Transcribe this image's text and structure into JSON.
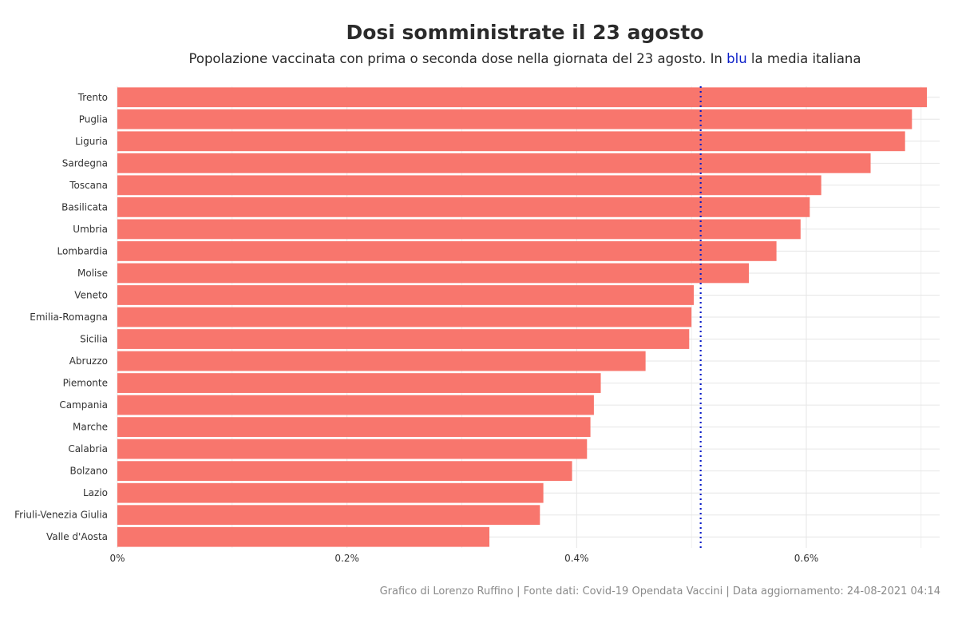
{
  "title": "Dosi somministrate il 23 agosto",
  "subtitle": {
    "before": "Popolazione vaccinata con prima o seconda dose nella giornata del 23 agosto. In ",
    "highlight": "blu",
    "after": " la media italiana"
  },
  "caption": "Grafico di Lorenzo Ruffino | Fonte dati: Covid-19 Opendata Vaccini | Data aggiornamento: 24-08-2021 04:14",
  "colors": {
    "bar": "#f8766d",
    "mean_line": "#0a1ec8",
    "grid": "#e6e6e6"
  },
  "chart_data": {
    "type": "bar",
    "orientation": "horizontal",
    "categories": [
      "Trento",
      "Puglia",
      "Liguria",
      "Sardegna",
      "Toscana",
      "Basilicata",
      "Umbria",
      "Lombardia",
      "Molise",
      "Veneto",
      "Emilia-Romagna",
      "Sicilia",
      "Abruzzo",
      "Piemonte",
      "Campania",
      "Marche",
      "Calabria",
      "Bolzano",
      "Lazio",
      "Friuli-Venezia Giulia",
      "Valle d'Aosta"
    ],
    "values": [
      0.705,
      0.692,
      0.686,
      0.656,
      0.613,
      0.603,
      0.595,
      0.574,
      0.55,
      0.502,
      0.5,
      0.498,
      0.46,
      0.421,
      0.415,
      0.412,
      0.409,
      0.396,
      0.371,
      0.368,
      0.324
    ],
    "unit": "%",
    "mean_line": 0.508,
    "xlim": [
      0,
      0.71
    ],
    "x_ticks": [
      0,
      0.2,
      0.4,
      0.6
    ],
    "x_tick_labels": [
      "0%",
      "0.2%",
      "0.4%",
      "0.6%"
    ],
    "xlabel": "",
    "ylabel": "",
    "grid": true,
    "legend": "none"
  }
}
